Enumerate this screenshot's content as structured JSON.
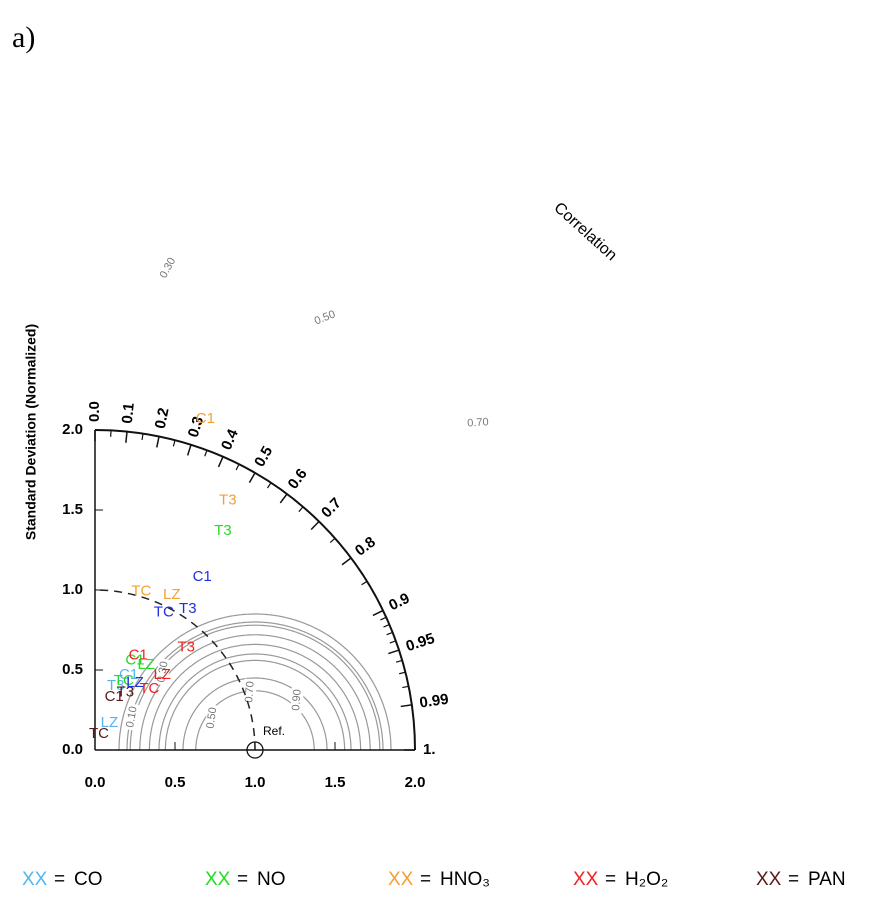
{
  "chart_data": {
    "type": "taylor",
    "panel_label": "a)",
    "y_label": "Standard Deviation (Normalized)",
    "corr_label": "Correlation",
    "ref_label": "Ref.",
    "ref": 1.0,
    "xlim": [
      0,
      2
    ],
    "ylim": [
      0,
      2
    ],
    "xticks": [
      {
        "value": 0,
        "label": "0.0"
      },
      {
        "value": 0.5,
        "label": "0.5"
      },
      {
        "value": 1,
        "label": "1.0"
      },
      {
        "value": 1.5,
        "label": "1.5"
      },
      {
        "value": 2,
        "label": "2.0"
      }
    ],
    "yticks": [
      {
        "value": 0,
        "label": "0.0"
      },
      {
        "value": 0.5,
        "label": "0.5"
      },
      {
        "value": 1,
        "label": "1.0"
      },
      {
        "value": 1.5,
        "label": "1.5"
      },
      {
        "value": 2,
        "label": "2.0"
      }
    ],
    "corr_ticks": [
      {
        "value": 0,
        "label": "0.0"
      },
      0.1,
      0.2,
      0.3,
      0.4,
      0.5,
      0.6,
      0.7,
      0.8,
      0.9,
      0.95,
      0.99,
      {
        "value": 1,
        "label": "1."
      }
    ],
    "corr_minor_ticks": [
      0.05,
      0.15,
      0.25,
      0.35,
      0.45,
      0.55,
      0.65,
      0.75,
      0.85,
      0.91,
      0.92,
      0.93,
      0.94,
      0.96,
      0.97,
      0.98
    ],
    "rms_contours": [
      0.37,
      0.45,
      0.56,
      0.66,
      0.72,
      0.78,
      0.85,
      0.6,
      0.8
    ],
    "contour_labels": [
      "0.30",
      "0.50",
      "0.70",
      "0.10",
      "0.30",
      "0.50",
      "0.70",
      "0.90"
    ],
    "legend_symbol": "XX",
    "legend_separator": "=",
    "series": [
      {
        "name": "CO",
        "color": "#55b4f0",
        "labels": [
          "C1",
          "T3",
          "LZ"
        ],
        "x": [
          0.21,
          0.13,
          0.09
        ],
        "values": [
          0.47,
          0.4,
          0.17
        ]
      },
      {
        "name": "NO",
        "color": "#22dd22",
        "labels": [
          "T3",
          "C1",
          "LZ",
          "TC"
        ],
        "x": [
          0.8,
          0.25,
          0.32,
          0.18
        ],
        "values": [
          1.37,
          0.56,
          0.53,
          0.43
        ]
      },
      {
        "name": "HNO₃",
        "color": "#f5a030",
        "labels": [
          "C1",
          "T3",
          "TC",
          "LZ"
        ],
        "x": [
          0.69,
          0.83,
          0.29,
          0.48
        ],
        "values": [
          2.07,
          1.56,
          0.99,
          0.97
        ]
      },
      {
        "name": "H₂O₂",
        "color": "#f02020",
        "labels": [
          "C1",
          "LZ",
          "TC",
          "T3"
        ],
        "x": [
          0.27,
          0.42,
          0.34,
          0.57
        ],
        "values": [
          0.59,
          0.47,
          0.38,
          0.64
        ]
      },
      {
        "name": "PAN",
        "color": "#5a1a1a",
        "labels": [
          "C1",
          "T3",
          "TC"
        ],
        "x": [
          0.12,
          0.19,
          0.025
        ],
        "values": [
          0.33,
          0.36,
          0.1
        ]
      },
      {
        "name": null,
        "color": "#2030e0",
        "labels": [
          "C1",
          "T3",
          "TC",
          "LZ"
        ],
        "x": [
          0.67,
          0.58,
          0.43,
          0.25
        ],
        "values": [
          1.08,
          0.88,
          0.86,
          0.42
        ]
      }
    ]
  }
}
